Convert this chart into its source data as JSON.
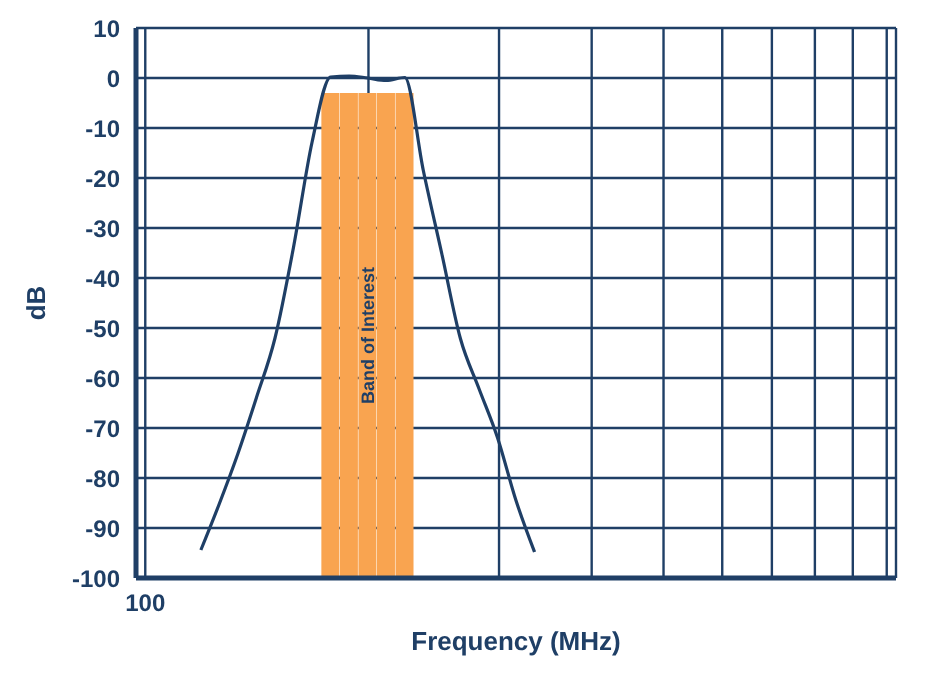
{
  "chart_data": {
    "type": "line",
    "xlabel": "Frequency (MHz)",
    "ylabel": "dB",
    "grid": true,
    "marker": "none",
    "line_style": "solid",
    "categories": [
      "100",
      null,
      null,
      null,
      null,
      null,
      null,
      null,
      null,
      null,
      null,
      null,
      null,
      null,
      null,
      null,
      null,
      null,
      null,
      null,
      null,
      null,
      null,
      null,
      null,
      null,
      null,
      null,
      null,
      null,
      null,
      null,
      null,
      null,
      null,
      null,
      null,
      null,
      null,
      null,
      null
    ],
    "ylim": [
      -100,
      10
    ],
    "yticks": [
      -100,
      -90,
      -80,
      -70,
      -60,
      -50,
      -40,
      -30,
      -20,
      -10,
      0,
      10
    ],
    "series": [
      {
        "type": "bar",
        "color": "#f9a450",
        "base": [
          null,
          null,
          null,
          null,
          null,
          null,
          null,
          null,
          null,
          null,
          -100,
          -100,
          -100,
          -100,
          -100,
          null,
          null,
          null,
          null,
          null,
          null,
          null,
          null,
          null,
          null,
          null,
          null,
          null,
          null,
          null,
          null,
          null,
          null,
          null,
          null,
          null,
          null,
          null,
          null,
          null,
          null
        ],
        "values": [
          null,
          null,
          null,
          null,
          null,
          null,
          null,
          null,
          null,
          null,
          97,
          97,
          97,
          97,
          97,
          null,
          null,
          null,
          null,
          null,
          null,
          null,
          null,
          null,
          null,
          null,
          null,
          null,
          null,
          null,
          null,
          null,
          null,
          null,
          null,
          null,
          null,
          null,
          null,
          null,
          null
        ]
      },
      {
        "color": "#1f3f66",
        "values": [
          null,
          null,
          null,
          -94.4,
          -85.1,
          -75.1,
          -63.9,
          -52,
          -33.8,
          -12.8,
          0.2,
          0.4,
          0,
          -0.5,
          0.1,
          -18.5,
          -35.2,
          -52.1,
          -62.1,
          -71.9,
          -84.5,
          -94.8,
          null,
          null,
          null,
          null,
          null,
          null,
          null,
          null,
          null,
          null,
          null,
          null,
          null,
          null,
          null,
          null,
          null,
          null,
          null
        ]
      }
    ],
    "annotations": [
      "Band of Interest"
    ]
  }
}
